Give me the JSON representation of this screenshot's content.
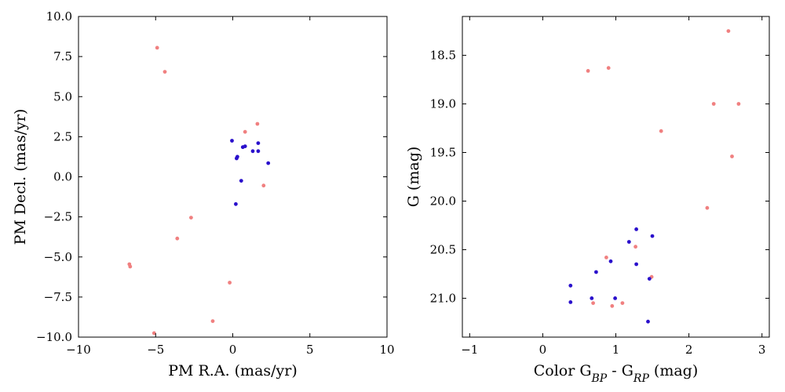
{
  "chart_data": [
    {
      "type": "scatter",
      "xlabel": "PM R.A. (mas/yr)",
      "ylabel": "PM Decl. (mas/yr)",
      "xlim": [
        -10,
        10
      ],
      "ylim": [
        -10,
        10
      ],
      "y_inverted": false,
      "grid": false,
      "xticks": [
        -10,
        -5,
        0,
        5,
        10
      ],
      "xtick_labels": [
        "−10",
        "−5",
        "0",
        "5",
        "10"
      ],
      "yticks": [
        -10,
        -7.5,
        -5,
        -2.5,
        0,
        2.5,
        5,
        7.5,
        10
      ],
      "ytick_labels": [
        "−10.0",
        "−7.5",
        "−5.0",
        "−2.5",
        "0.0",
        "2.5",
        "5.0",
        "7.5",
        "10.0"
      ],
      "series": [
        {
          "color": "#f08080",
          "points": [
            {
              "x": -4.9,
              "y": 8.05
            },
            {
              "x": -4.4,
              "y": 6.55
            },
            {
              "x": 1.6,
              "y": 3.3
            },
            {
              "x": 0.8,
              "y": 2.8
            },
            {
              "x": 2.0,
              "y": -0.55
            },
            {
              "x": -2.7,
              "y": -2.55
            },
            {
              "x": -3.6,
              "y": -3.85
            },
            {
              "x": -6.7,
              "y": -5.45
            },
            {
              "x": -6.65,
              "y": -5.6
            },
            {
              "x": -0.2,
              "y": -6.6
            },
            {
              "x": -1.3,
              "y": -9.0
            },
            {
              "x": -5.1,
              "y": -9.75
            }
          ]
        },
        {
          "color": "#2a10cc",
          "points": [
            {
              "x": -0.05,
              "y": 2.25
            },
            {
              "x": 0.65,
              "y": 1.85
            },
            {
              "x": 0.8,
              "y": 1.9
            },
            {
              "x": 1.65,
              "y": 2.1
            },
            {
              "x": 1.3,
              "y": 1.6
            },
            {
              "x": 1.65,
              "y": 1.6
            },
            {
              "x": 0.25,
              "y": 1.15
            },
            {
              "x": 0.3,
              "y": 1.25
            },
            {
              "x": 2.3,
              "y": 0.85
            },
            {
              "x": 0.55,
              "y": -0.25
            },
            {
              "x": 0.2,
              "y": -1.7
            }
          ]
        }
      ]
    },
    {
      "type": "scatter",
      "xlabel": "Color G",
      "xlabel_sub1": "BP",
      "xlabel_mid": " - G",
      "xlabel_sub2": "RP",
      "xlabel_end": " (mag)",
      "ylabel": "G (mag)",
      "xlim": [
        -1.1,
        3.1
      ],
      "ylim": [
        21.4,
        18.1
      ],
      "y_inverted": true,
      "grid": false,
      "xticks": [
        -1,
        0,
        1,
        2,
        3
      ],
      "xtick_labels": [
        "−1",
        "0",
        "1",
        "2",
        "3"
      ],
      "yticks": [
        18.5,
        19.0,
        19.5,
        20.0,
        20.5,
        21.0
      ],
      "ytick_labels": [
        "18.5",
        "19.0",
        "19.5",
        "20.0",
        "20.5",
        "21.0"
      ],
      "series": [
        {
          "color": "#f08080",
          "points": [
            {
              "x": 2.54,
              "y": 18.25
            },
            {
              "x": 0.62,
              "y": 18.66
            },
            {
              "x": 0.9,
              "y": 18.63
            },
            {
              "x": 2.34,
              "y": 19.0
            },
            {
              "x": 2.68,
              "y": 19.0
            },
            {
              "x": 1.62,
              "y": 19.28
            },
            {
              "x": 2.59,
              "y": 19.54
            },
            {
              "x": 2.25,
              "y": 20.07
            },
            {
              "x": 1.27,
              "y": 20.47
            },
            {
              "x": 0.87,
              "y": 20.58
            },
            {
              "x": 1.49,
              "y": 20.78
            },
            {
              "x": 0.69,
              "y": 21.05
            },
            {
              "x": 0.95,
              "y": 21.08
            },
            {
              "x": 1.09,
              "y": 21.05
            }
          ]
        },
        {
          "color": "#2a10cc",
          "points": [
            {
              "x": 1.28,
              "y": 20.29
            },
            {
              "x": 1.5,
              "y": 20.36
            },
            {
              "x": 1.18,
              "y": 20.42
            },
            {
              "x": 0.93,
              "y": 20.62
            },
            {
              "x": 1.28,
              "y": 20.65
            },
            {
              "x": 0.73,
              "y": 20.73
            },
            {
              "x": 1.46,
              "y": 20.8
            },
            {
              "x": 0.38,
              "y": 20.87
            },
            {
              "x": 0.67,
              "y": 21.0
            },
            {
              "x": 0.99,
              "y": 21.0
            },
            {
              "x": 0.38,
              "y": 21.04
            },
            {
              "x": 1.44,
              "y": 21.24
            }
          ]
        }
      ]
    }
  ]
}
